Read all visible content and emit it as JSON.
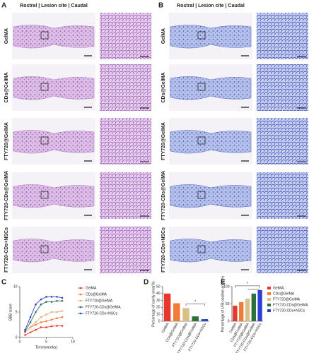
{
  "panels": [
    {
      "label": "A",
      "header": "Rostral | Lesion cite | Caudal",
      "rows": [
        "GelMA",
        "CDs@GelMA",
        "FTY720@GelMA",
        "FTY720-CDs@GelMA",
        "FTY720-CDs+NSCs"
      ]
    },
    {
      "label": "B",
      "header": "Rostral | Lesion cite | Caudal",
      "rows": [
        "GelMA",
        "CDs@GelMA",
        "FTY720@GelMA",
        "FTY720-CDs@GelMA",
        "FTY720-CDs+NSCs"
      ]
    }
  ],
  "chart_data": [
    {
      "type": "line",
      "panel": "C",
      "ylabel": "BBB score",
      "xlabel": "Time(weeks)",
      "x": [
        1,
        2,
        3,
        4,
        5,
        6,
        7,
        8
      ],
      "xlim": [
        0,
        10
      ],
      "xticks": [
        0,
        5,
        10
      ],
      "ylim": [
        0,
        10
      ],
      "yticks": [
        0,
        5,
        10
      ],
      "series": [
        {
          "name": "GelMA",
          "color": "#e8372f",
          "values": [
            0.5,
            1,
            1.5,
            2,
            2,
            2.2,
            2.3,
            2.3
          ]
        },
        {
          "name": "CDs@GelMA",
          "color": "#f07c3a",
          "values": [
            1,
            2,
            2.5,
            3,
            3.2,
            3.5,
            3.8,
            4
          ]
        },
        {
          "name": "FTY720@GelMA",
          "color": "#e3b27a",
          "values": [
            1,
            2,
            3,
            4,
            4.5,
            5,
            5,
            5.2
          ]
        },
        {
          "name": "FTY720-CDs@GelMA",
          "color": "#2f6f5a",
          "values": [
            1.2,
            3,
            5,
            6.5,
            7,
            7,
            7.2,
            7.2
          ]
        },
        {
          "name": "FTY720-CDs+NSCs",
          "color": "#2f3fd0",
          "values": [
            1.5,
            4,
            6.5,
            7.5,
            8,
            8,
            8,
            7.8
          ]
        }
      ]
    },
    {
      "type": "bar",
      "panel": "D",
      "ylabel": "Percentage of cavity area(%)",
      "categories": [
        "GelMA",
        "CDs@GelMA",
        "FTY720@GelMA",
        "FTY720-CDs@GelMA",
        "FTY720-CDs+NSCs"
      ],
      "values": [
        40,
        26,
        19,
        7,
        3
      ],
      "colors": [
        "#e8372f",
        "#f07c3a",
        "#d9c08a",
        "#2f6f3a",
        "#2f3fd0"
      ],
      "ylim": [
        0,
        50
      ],
      "yticks": [
        0,
        10,
        20,
        30,
        40,
        50
      ],
      "annotation": "*"
    },
    {
      "type": "bar",
      "panel": "E",
      "ylabel": "Percentage of LFB positive area(%)",
      "categories": [
        "GelMA",
        "CDs@GelMA",
        "FTY720@GelMA",
        "FTY720-CDs@GelMA",
        "FTY720-CDs+NSCs"
      ],
      "values": [
        45,
        55,
        65,
        80,
        90
      ],
      "colors": [
        "#e8372f",
        "#f07c3a",
        "#d9c08a",
        "#2f6f3a",
        "#2f3fd0"
      ],
      "ylim": [
        0,
        100
      ],
      "yticks": [
        0,
        50,
        100
      ],
      "annotation": "*",
      "legend": true
    }
  ]
}
